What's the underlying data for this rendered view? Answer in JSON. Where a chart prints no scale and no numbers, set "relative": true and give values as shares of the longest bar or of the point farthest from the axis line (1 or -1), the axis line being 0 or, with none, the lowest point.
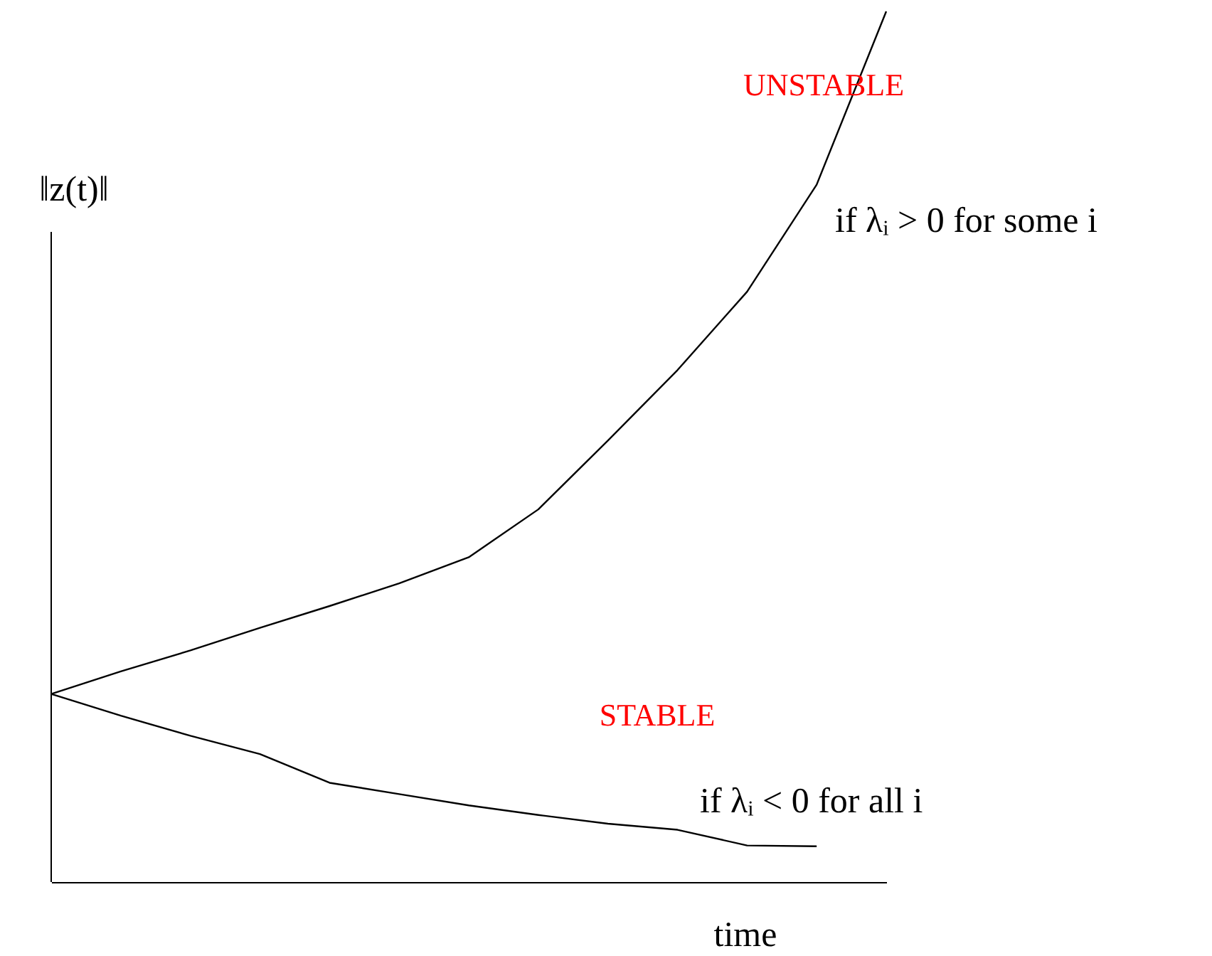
{
  "chart_data": {
    "type": "line",
    "relative": true,
    "xlabel": "time",
    "ylabel": "‖z(t)‖",
    "categories": [
      null,
      null,
      null,
      null,
      null,
      null,
      null,
      null,
      null,
      null,
      null,
      null,
      null
    ],
    "legend": false,
    "line_style": "solid",
    "series": [
      {
        "name": "UNSTABLE",
        "color": "#000000",
        "values": [
          0.216,
          0.242,
          0.266,
          0.292,
          0.317,
          0.343,
          0.373,
          0.428,
          0.507,
          0.588,
          0.678,
          0.801,
          1
        ]
      },
      {
        "name": "STABLE",
        "color": "#000000",
        "values": [
          0.216,
          0.191,
          0.168,
          0.147,
          0.114,
          0.101,
          0.088,
          0.077,
          0.067,
          0.06,
          0.042,
          0.041,
          null
        ]
      }
    ],
    "annotations": [
      "if λᵢ > 0 for some i",
      "if λᵢ < 0 for all i"
    ]
  }
}
